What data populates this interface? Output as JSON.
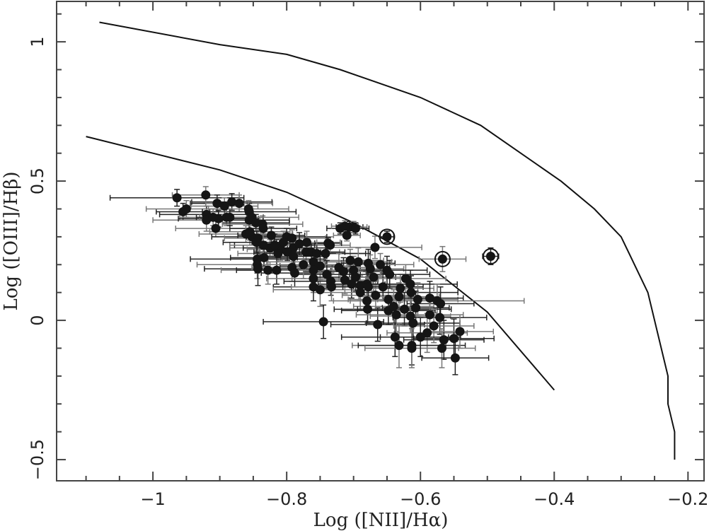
{
  "chart_data": {
    "type": "scatter",
    "title": "",
    "xlabel": "Log ([NII]/Hα)",
    "ylabel": "Log ([OIII]/Hβ)",
    "xlim": [
      -1.144,
      -0.176
    ],
    "ylim": [
      -0.576,
      1.145
    ],
    "x_ticks": [
      -1,
      -0.8,
      -0.6,
      -0.4,
      -0.2
    ],
    "x_tick_labels": [
      "−1",
      "−0.8",
      "−0.6",
      "−0.4",
      "−0.2"
    ],
    "x_minor_step": 0.05,
    "y_ticks": [
      -0.5,
      0,
      0.5,
      1
    ],
    "y_tick_labels": [
      "−0.5",
      "0",
      "0.5",
      "1"
    ],
    "y_minor_step": 0.1,
    "grid": false,
    "legend": null,
    "curves": [
      {
        "name": "upper demarcation curve",
        "x": [
          -1.08,
          -0.9,
          -0.8,
          -0.72,
          -0.6,
          -0.51,
          -0.39,
          -0.34,
          -0.3,
          -0.26,
          -0.23,
          -0.23,
          -0.22,
          -0.22
        ],
        "y": [
          1.07,
          0.99,
          0.955,
          0.9,
          0.8,
          0.7,
          0.5,
          0.4,
          0.3,
          0.1,
          -0.2,
          -0.3,
          -0.4,
          -0.5
        ]
      },
      {
        "name": "lower demarcation curve",
        "x": [
          -1.1,
          -1.0,
          -0.9,
          -0.8,
          -0.7,
          -0.6,
          -0.5,
          -0.4
        ],
        "y": [
          0.66,
          0.6,
          0.54,
          0.46,
          0.35,
          0.22,
          0.03,
          -0.25
        ]
      }
    ],
    "series": [
      {
        "name": "galaxies",
        "marker": "filled-circle",
        "points": [
          {
            "x": -0.964,
            "y": 0.44,
            "xerr": 0.1,
            "yerr": 0.03
          },
          {
            "x": -0.921,
            "y": 0.45,
            "xerr": 0.05,
            "yerr": 0.03
          },
          {
            "x": -0.955,
            "y": 0.39,
            "xerr": 0.04,
            "yerr": 0.03
          },
          {
            "x": -0.95,
            "y": 0.4,
            "xerr": 0.06,
            "yerr": 0.03
          },
          {
            "x": -0.92,
            "y": 0.38,
            "xerr": 0.07,
            "yerr": 0.03
          },
          {
            "x": -0.92,
            "y": 0.36,
            "xerr": 0.08,
            "yerr": 0.04
          },
          {
            "x": -0.904,
            "y": 0.42,
            "xerr": 0.04,
            "yerr": 0.03
          },
          {
            "x": -0.893,
            "y": 0.41,
            "xerr": 0.05,
            "yerr": 0.03
          },
          {
            "x": -0.882,
            "y": 0.425,
            "xerr": 0.06,
            "yerr": 0.03
          },
          {
            "x": -0.871,
            "y": 0.42,
            "xerr": 0.05,
            "yerr": 0.03
          },
          {
            "x": -0.856,
            "y": 0.39,
            "xerr": 0.07,
            "yerr": 0.03
          },
          {
            "x": -0.91,
            "y": 0.37,
            "xerr": 0.05,
            "yerr": 0.03
          },
          {
            "x": -0.902,
            "y": 0.365,
            "xerr": 0.06,
            "yerr": 0.03
          },
          {
            "x": -0.89,
            "y": 0.37,
            "xerr": 0.04,
            "yerr": 0.03
          },
          {
            "x": -0.885,
            "y": 0.37,
            "xerr": 0.05,
            "yerr": 0.03
          },
          {
            "x": -0.906,
            "y": 0.33,
            "xerr": 0.06,
            "yerr": 0.03
          },
          {
            "x": -0.856,
            "y": 0.36,
            "xerr": 0.06,
            "yerr": 0.03
          },
          {
            "x": -0.852,
            "y": 0.37,
            "xerr": 0.07,
            "yerr": 0.03
          },
          {
            "x": -0.846,
            "y": 0.35,
            "xerr": 0.05,
            "yerr": 0.03
          },
          {
            "x": -0.836,
            "y": 0.345,
            "xerr": 0.06,
            "yerr": 0.03
          },
          {
            "x": -0.835,
            "y": 0.33,
            "xerr": 0.05,
            "yerr": 0.03
          },
          {
            "x": -0.861,
            "y": 0.31,
            "xerr": 0.07,
            "yerr": 0.03
          },
          {
            "x": -0.852,
            "y": 0.3,
            "xerr": 0.06,
            "yerr": 0.03
          },
          {
            "x": -0.843,
            "y": 0.295,
            "xerr": 0.05,
            "yerr": 0.03
          },
          {
            "x": -0.823,
            "y": 0.305,
            "xerr": 0.05,
            "yerr": 0.03
          },
          {
            "x": -0.855,
            "y": 0.318,
            "xerr": 0.06,
            "yerr": 0.03
          },
          {
            "x": -0.8,
            "y": 0.3,
            "xerr": 0.06,
            "yerr": 0.03
          },
          {
            "x": -0.792,
            "y": 0.295,
            "xerr": 0.05,
            "yerr": 0.03
          },
          {
            "x": -0.79,
            "y": 0.26,
            "xerr": 0.05,
            "yerr": 0.03
          },
          {
            "x": -0.825,
            "y": 0.26,
            "xerr": 0.06,
            "yerr": 0.03
          },
          {
            "x": -0.815,
            "y": 0.26,
            "xerr": 0.05,
            "yerr": 0.03
          },
          {
            "x": -0.809,
            "y": 0.255,
            "xerr": 0.05,
            "yerr": 0.04
          },
          {
            "x": -0.834,
            "y": 0.225,
            "xerr": 0.05,
            "yerr": 0.03
          },
          {
            "x": -0.813,
            "y": 0.24,
            "xerr": 0.06,
            "yerr": 0.03
          },
          {
            "x": -0.799,
            "y": 0.245,
            "xerr": 0.05,
            "yerr": 0.03
          },
          {
            "x": -0.771,
            "y": 0.245,
            "xerr": 0.05,
            "yerr": 0.03
          },
          {
            "x": -0.763,
            "y": 0.245,
            "xerr": 0.05,
            "yerr": 0.03
          },
          {
            "x": -0.735,
            "y": 0.27,
            "xerr": 0.03,
            "yerr": 0.03
          },
          {
            "x": -0.72,
            "y": 0.33,
            "xerr": 0.02,
            "yerr": 0.02
          },
          {
            "x": -0.713,
            "y": 0.338,
            "xerr": 0.02,
            "yerr": 0.02
          },
          {
            "x": -0.706,
            "y": 0.335,
            "xerr": 0.02,
            "yerr": 0.02
          },
          {
            "x": -0.7,
            "y": 0.335,
            "xerr": 0.02,
            "yerr": 0.02
          },
          {
            "x": -0.697,
            "y": 0.33,
            "xerr": 0.02,
            "yerr": 0.02
          },
          {
            "x": -0.71,
            "y": 0.305,
            "xerr": 0.02,
            "yerr": 0.02
          },
          {
            "x": -0.738,
            "y": 0.277,
            "xerr": 0.02,
            "yerr": 0.02
          },
          {
            "x": -0.668,
            "y": 0.262,
            "xerr": 0.07,
            "yerr": 0.04
          },
          {
            "x": -0.755,
            "y": 0.24,
            "xerr": 0.08,
            "yerr": 0.04
          },
          {
            "x": -0.705,
            "y": 0.215,
            "xerr": 0.05,
            "yerr": 0.04
          },
          {
            "x": -0.678,
            "y": 0.205,
            "xerr": 0.04,
            "yerr": 0.05
          },
          {
            "x": -0.675,
            "y": 0.185,
            "xerr": 0.05,
            "yerr": 0.05
          },
          {
            "x": -0.844,
            "y": 0.22,
            "xerr": 0.1,
            "yerr": 0.05
          },
          {
            "x": -0.844,
            "y": 0.2,
            "xerr": 0.09,
            "yerr": 0.05
          },
          {
            "x": -0.843,
            "y": 0.185,
            "xerr": 0.08,
            "yerr": 0.06
          },
          {
            "x": -0.828,
            "y": 0.18,
            "xerr": 0.07,
            "yerr": 0.05
          },
          {
            "x": -0.815,
            "y": 0.18,
            "xerr": 0.06,
            "yerr": 0.05
          },
          {
            "x": -0.792,
            "y": 0.19,
            "xerr": 0.06,
            "yerr": 0.05
          },
          {
            "x": -0.788,
            "y": 0.17,
            "xerr": 0.05,
            "yerr": 0.05
          },
          {
            "x": -0.76,
            "y": 0.21,
            "xerr": 0.07,
            "yerr": 0.05
          },
          {
            "x": -0.75,
            "y": 0.195,
            "xerr": 0.06,
            "yerr": 0.05
          },
          {
            "x": -0.76,
            "y": 0.18,
            "xerr": 0.06,
            "yerr": 0.05
          },
          {
            "x": -0.742,
            "y": 0.24,
            "xerr": 0.06,
            "yerr": 0.04
          },
          {
            "x": -0.76,
            "y": 0.15,
            "xerr": 0.07,
            "yerr": 0.05
          },
          {
            "x": -0.76,
            "y": 0.12,
            "xerr": 0.06,
            "yerr": 0.05
          },
          {
            "x": -0.75,
            "y": 0.11,
            "xerr": 0.07,
            "yerr": 0.06
          },
          {
            "x": -0.734,
            "y": 0.14,
            "xerr": 0.07,
            "yerr": 0.05
          },
          {
            "x": -0.733,
            "y": 0.12,
            "xerr": 0.06,
            "yerr": 0.05
          },
          {
            "x": -0.745,
            "y": -0.005,
            "xerr": 0.09,
            "yerr": 0.06
          },
          {
            "x": -0.722,
            "y": 0.19,
            "xerr": 0.05,
            "yerr": 0.05
          },
          {
            "x": -0.715,
            "y": 0.175,
            "xerr": 0.06,
            "yerr": 0.05
          },
          {
            "x": -0.7,
            "y": 0.18,
            "xerr": 0.05,
            "yerr": 0.05
          },
          {
            "x": -0.697,
            "y": 0.155,
            "xerr": 0.06,
            "yerr": 0.05
          },
          {
            "x": -0.713,
            "y": 0.145,
            "xerr": 0.05,
            "yerr": 0.05
          },
          {
            "x": -0.703,
            "y": 0.13,
            "xerr": 0.05,
            "yerr": 0.05
          },
          {
            "x": -0.69,
            "y": 0.125,
            "xerr": 0.06,
            "yerr": 0.05
          },
          {
            "x": -0.68,
            "y": 0.13,
            "xerr": 0.05,
            "yerr": 0.05
          },
          {
            "x": -0.69,
            "y": 0.1,
            "xerr": 0.06,
            "yerr": 0.06
          },
          {
            "x": -0.679,
            "y": 0.04,
            "xerr": 0.05,
            "yerr": 0.05
          },
          {
            "x": -0.68,
            "y": 0.07,
            "xerr": 0.05,
            "yerr": 0.05
          },
          {
            "x": -0.664,
            "y": -0.015,
            "xerr": 0.07,
            "yerr": 0.06
          },
          {
            "x": -0.648,
            "y": 0.075,
            "xerr": 0.06,
            "yerr": 0.05
          },
          {
            "x": -0.648,
            "y": 0.035,
            "xerr": 0.07,
            "yerr": 0.05
          },
          {
            "x": -0.667,
            "y": 0.09,
            "xerr": 0.05,
            "yerr": 0.05
          },
          {
            "x": -0.678,
            "y": 0.12,
            "xerr": 0.06,
            "yerr": 0.05
          },
          {
            "x": -0.67,
            "y": 0.155,
            "xerr": 0.05,
            "yerr": 0.05
          },
          {
            "x": -0.656,
            "y": 0.12,
            "xerr": 0.06,
            "yerr": 0.05
          },
          {
            "x": -0.63,
            "y": 0.115,
            "xerr": 0.05,
            "yerr": 0.05
          },
          {
            "x": -0.646,
            "y": 0.165,
            "xerr": 0.06,
            "yerr": 0.05
          },
          {
            "x": -0.622,
            "y": 0.15,
            "xerr": 0.06,
            "yerr": 0.05
          },
          {
            "x": -0.615,
            "y": 0.13,
            "xerr": 0.07,
            "yerr": 0.05
          },
          {
            "x": -0.632,
            "y": 0.085,
            "xerr": 0.06,
            "yerr": 0.05
          },
          {
            "x": -0.614,
            "y": 0.1,
            "xerr": 0.07,
            "yerr": 0.06
          },
          {
            "x": -0.604,
            "y": 0.075,
            "xerr": 0.06,
            "yerr": 0.06
          },
          {
            "x": -0.586,
            "y": 0.08,
            "xerr": 0.05,
            "yerr": 0.06
          },
          {
            "x": -0.575,
            "y": 0.07,
            "xerr": 0.13,
            "yerr": 0.06
          },
          {
            "x": -0.57,
            "y": 0.06,
            "xerr": 0.05,
            "yerr": 0.06
          },
          {
            "x": -0.64,
            "y": 0.05,
            "xerr": 0.06,
            "yerr": 0.06
          },
          {
            "x": -0.624,
            "y": 0.04,
            "xerr": 0.07,
            "yerr": 0.06
          },
          {
            "x": -0.636,
            "y": 0.02,
            "xerr": 0.06,
            "yerr": 0.06
          },
          {
            "x": -0.607,
            "y": 0.045,
            "xerr": 0.05,
            "yerr": 0.06
          },
          {
            "x": -0.615,
            "y": 0.015,
            "xerr": 0.06,
            "yerr": 0.06
          },
          {
            "x": -0.611,
            "y": -0.01,
            "xerr": 0.07,
            "yerr": 0.06
          },
          {
            "x": -0.586,
            "y": 0.02,
            "xerr": 0.05,
            "yerr": 0.06
          },
          {
            "x": -0.571,
            "y": 0.01,
            "xerr": 0.07,
            "yerr": 0.06
          },
          {
            "x": -0.59,
            "y": -0.045,
            "xerr": 0.06,
            "yerr": 0.07
          },
          {
            "x": -0.638,
            "y": -0.06,
            "xerr": 0.08,
            "yerr": 0.07
          },
          {
            "x": -0.632,
            "y": -0.09,
            "xerr": 0.07,
            "yerr": 0.08
          },
          {
            "x": -0.613,
            "y": -0.09,
            "xerr": 0.08,
            "yerr": 0.07
          },
          {
            "x": -0.613,
            "y": -0.1,
            "xerr": 0.07,
            "yerr": 0.07
          },
          {
            "x": -0.565,
            "y": -0.07,
            "xerr": 0.06,
            "yerr": 0.07
          },
          {
            "x": -0.568,
            "y": -0.1,
            "xerr": 0.05,
            "yerr": 0.07
          },
          {
            "x": -0.55,
            "y": -0.065,
            "xerr": 0.06,
            "yerr": 0.07
          },
          {
            "x": -0.541,
            "y": -0.04,
            "xerr": 0.05,
            "yerr": 0.06
          },
          {
            "x": -0.548,
            "y": -0.135,
            "xerr": 0.05,
            "yerr": 0.06
          },
          {
            "x": -0.58,
            "y": -0.02,
            "xerr": 0.06,
            "yerr": 0.06
          },
          {
            "x": -0.6,
            "y": -0.06,
            "xerr": 0.06,
            "yerr": 0.07
          },
          {
            "x": -0.66,
            "y": 0.2,
            "xerr": 0.05,
            "yerr": 0.04
          },
          {
            "x": -0.65,
            "y": 0.18,
            "xerr": 0.06,
            "yerr": 0.05
          },
          {
            "x": -0.693,
            "y": 0.21,
            "xerr": 0.05,
            "yerr": 0.05
          },
          {
            "x": -0.74,
            "y": 0.165,
            "xerr": 0.05,
            "yerr": 0.05
          },
          {
            "x": -0.775,
            "y": 0.2,
            "xerr": 0.05,
            "yerr": 0.05
          },
          {
            "x": -0.79,
            "y": 0.23,
            "xerr": 0.05,
            "yerr": 0.04
          },
          {
            "x": -0.77,
            "y": 0.28,
            "xerr": 0.05,
            "yerr": 0.04
          },
          {
            "x": -0.781,
            "y": 0.275,
            "xerr": 0.05,
            "yerr": 0.04
          },
          {
            "x": -0.805,
            "y": 0.28,
            "xerr": 0.05,
            "yerr": 0.04
          },
          {
            "x": -0.818,
            "y": 0.27,
            "xerr": 0.06,
            "yerr": 0.04
          },
          {
            "x": -0.835,
            "y": 0.27,
            "xerr": 0.05,
            "yerr": 0.04
          },
          {
            "x": -0.845,
            "y": 0.28,
            "xerr": 0.05,
            "yerr": 0.04
          },
          {
            "x": -0.857,
            "y": 0.4,
            "xerr": 0.06,
            "yerr": 0.03
          }
        ]
      },
      {
        "name": "circled objects",
        "marker": "circled-filled-circle",
        "points": [
          {
            "x": -0.65,
            "y": 0.3,
            "xerr": 0.01,
            "yerr": 0.02
          },
          {
            "x": -0.567,
            "y": 0.22,
            "xerr": 0.035,
            "yerr": 0.045
          },
          {
            "x": -0.495,
            "y": 0.23,
            "xerr": 0.012,
            "yerr": 0.03
          }
        ]
      }
    ]
  }
}
